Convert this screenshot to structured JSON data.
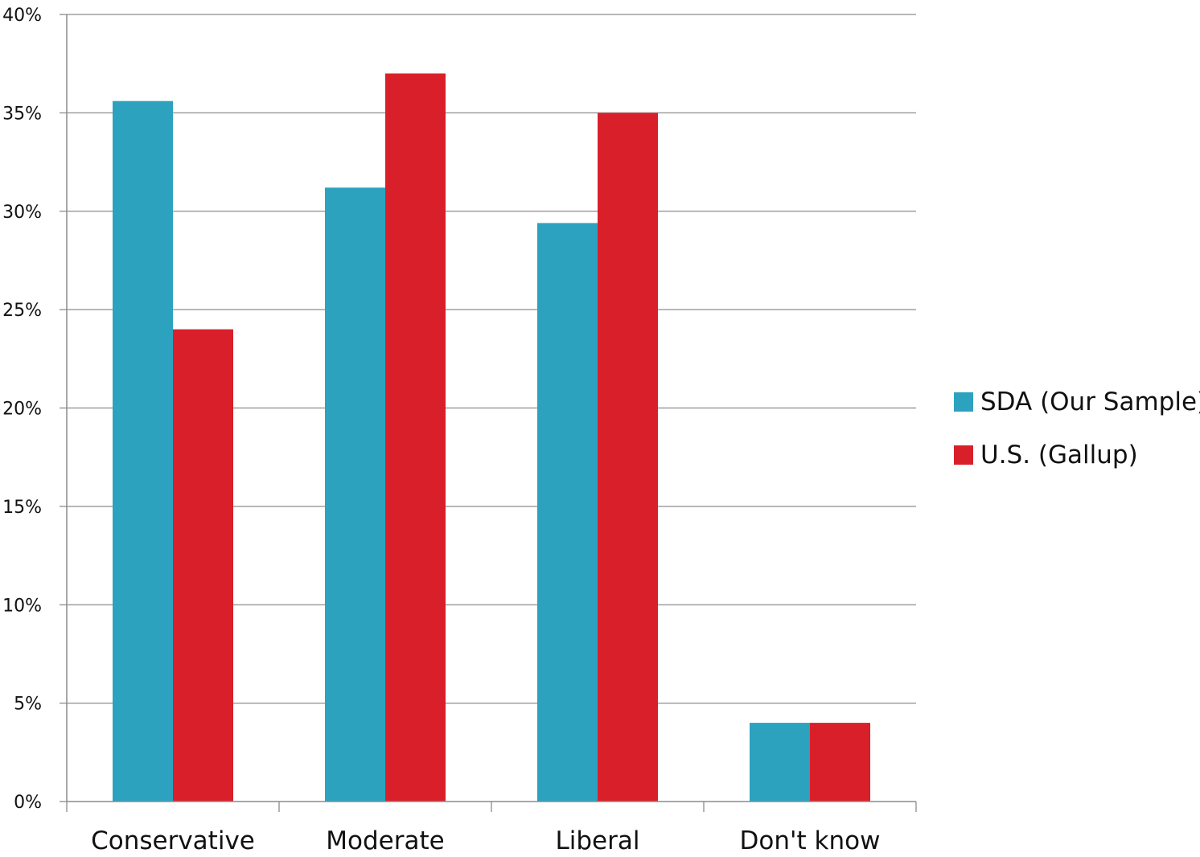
{
  "chart_data": {
    "type": "bar",
    "categories": [
      "Conservative",
      "Moderate",
      "Liberal",
      "Don't know"
    ],
    "series": [
      {
        "name": "SDA (Our Sample)",
        "color": "#2ca2bf",
        "values": [
          35.6,
          31.2,
          29.4,
          4.0
        ]
      },
      {
        "name": "U.S. (Gallup)",
        "color": "#d9202a",
        "values": [
          24,
          37,
          35,
          4
        ]
      }
    ],
    "ylim": [
      0,
      40
    ],
    "yticks": [
      0,
      5,
      10,
      15,
      20,
      25,
      30,
      35,
      40
    ],
    "ytick_labels": [
      "0%",
      "5%",
      "10%",
      "15%",
      "20%",
      "25%",
      "30%",
      "35%",
      "40%"
    ],
    "grid": true,
    "legend": "right"
  }
}
